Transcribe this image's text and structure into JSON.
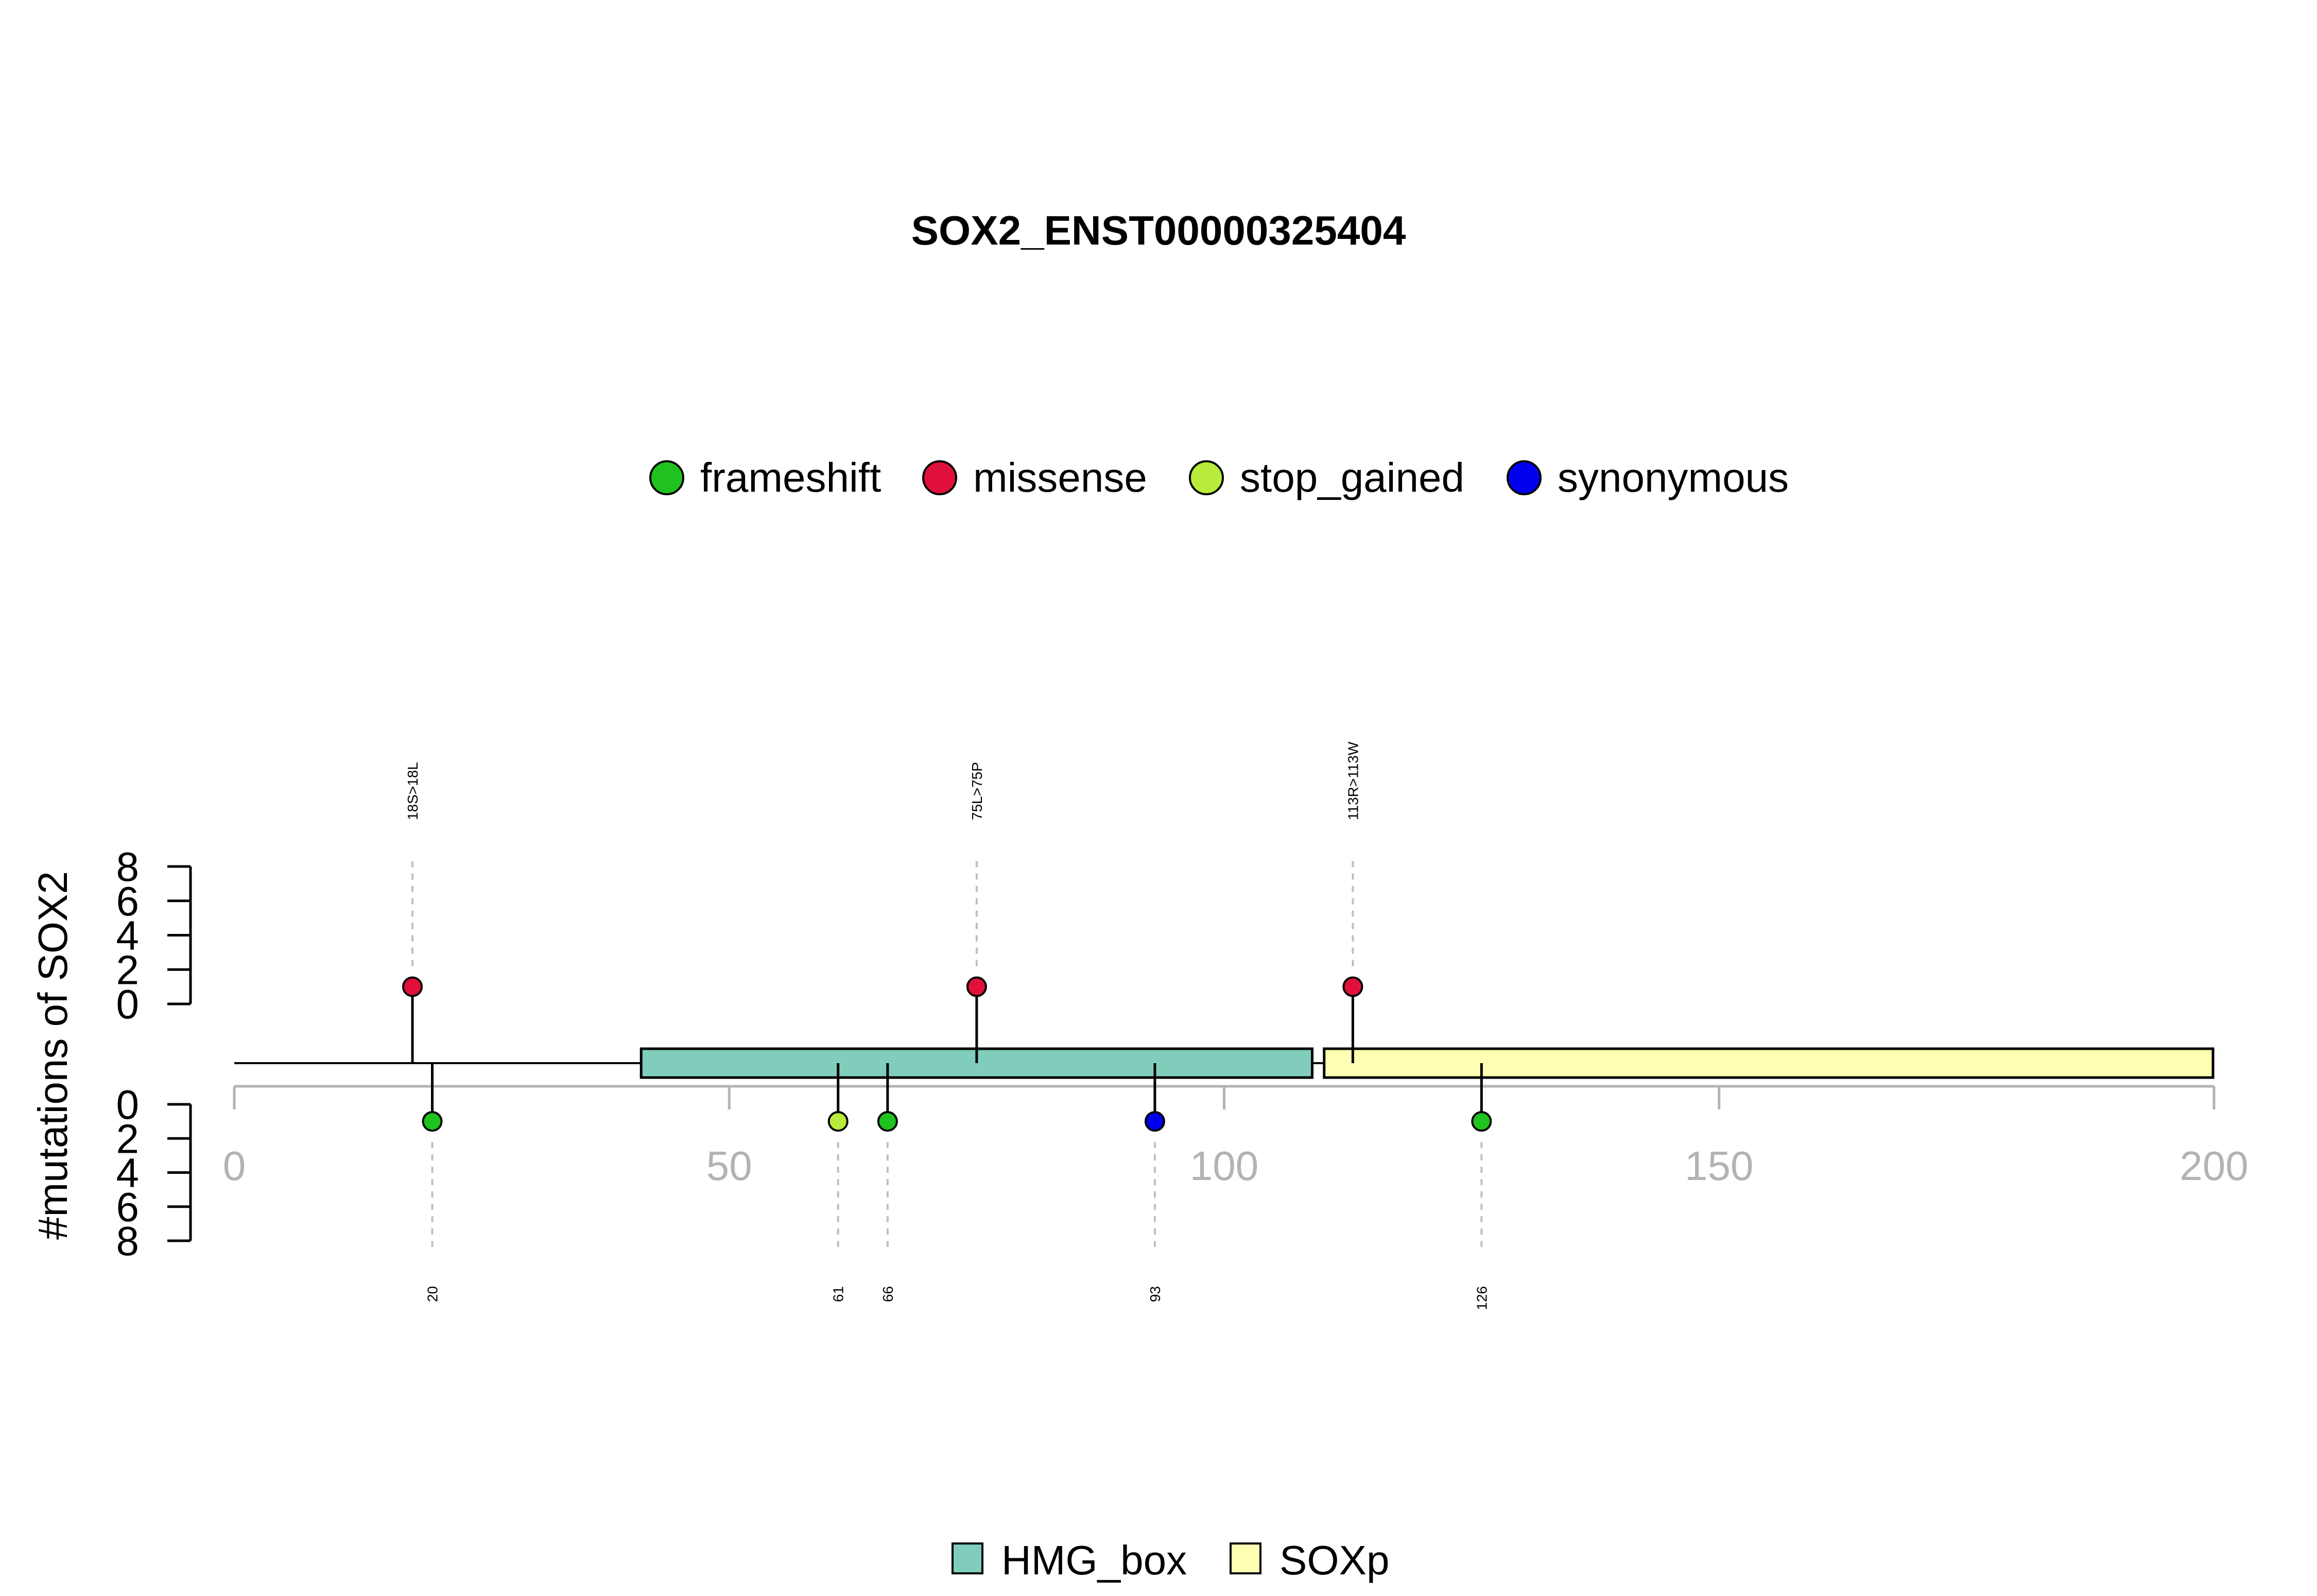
{
  "chart_data": {
    "type": "lollipop",
    "title": "SOX2_ENST00000325404",
    "ylabel": "#mutations of SOX2",
    "xlim": [
      0,
      200
    ],
    "x_ticks": [
      "0",
      "50",
      "100",
      "150",
      "200"
    ],
    "y_upper_ticks": [
      "0",
      "2",
      "4",
      "6",
      "8"
    ],
    "y_lower_ticks": [
      "0",
      "2",
      "4",
      "6",
      "8"
    ],
    "ylim": [
      0,
      8
    ],
    "mutation_types": [
      {
        "name": "frameshift",
        "color": "#1fc21f"
      },
      {
        "name": "missense",
        "color": "#e0103a"
      },
      {
        "name": "stop_gained",
        "color": "#b8eb3b"
      },
      {
        "name": "synonymous",
        "color": "#0000ee"
      }
    ],
    "mutations_above": [
      {
        "position": 18,
        "count": 1,
        "type": "missense",
        "label": "18S>18L"
      },
      {
        "position": 75,
        "count": 1,
        "type": "missense",
        "label": "75L>75P"
      },
      {
        "position": 113,
        "count": 1,
        "type": "missense",
        "label": "113R>113W"
      }
    ],
    "mutations_below": [
      {
        "position": 20,
        "count": 1,
        "type": "frameshift",
        "label": "20"
      },
      {
        "position": 61,
        "count": 1,
        "type": "stop_gained",
        "label": "61"
      },
      {
        "position": 66,
        "count": 1,
        "type": "frameshift",
        "label": "66"
      },
      {
        "position": 93,
        "count": 1,
        "type": "synonymous",
        "label": "93"
      },
      {
        "position": 126,
        "count": 1,
        "type": "frameshift",
        "label": "126"
      }
    ],
    "protein_length": 200,
    "domains": [
      {
        "name": "HMG_box",
        "start": 41,
        "end": 109,
        "color": "#80cdbb"
      },
      {
        "name": "SOXp",
        "start": 110,
        "end": 200,
        "color": "#ffffb3"
      }
    ]
  }
}
